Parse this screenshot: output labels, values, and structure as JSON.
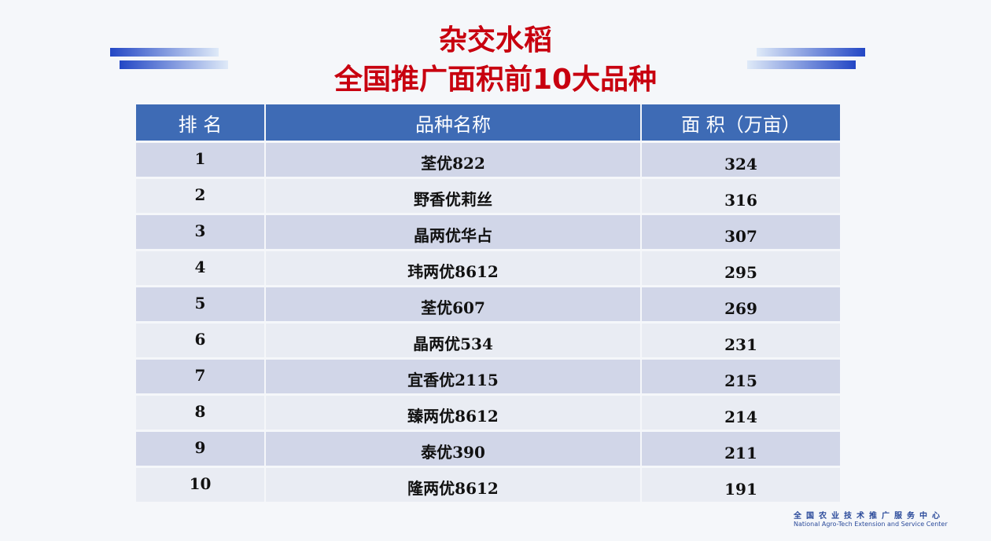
{
  "title": {
    "line1": "杂交水稻",
    "line2": "全国推广面积前10大品种"
  },
  "table": {
    "headers": [
      "排 名",
      "品种名称",
      "面 积（万亩）"
    ],
    "rows": [
      {
        "rank": "1",
        "name": "荃优822",
        "area": "324"
      },
      {
        "rank": "2",
        "name": "野香优莉丝",
        "area": "316"
      },
      {
        "rank": "3",
        "name": "晶两优华占",
        "area": "307"
      },
      {
        "rank": "4",
        "name": "玮两优8612",
        "area": "295"
      },
      {
        "rank": "5",
        "name": "荃优607",
        "area": "269"
      },
      {
        "rank": "6",
        "name": "晶两优534",
        "area": "231"
      },
      {
        "rank": "7",
        "name": "宜香优2115",
        "area": "215"
      },
      {
        "rank": "8",
        "name": "臻两优8612",
        "area": "214"
      },
      {
        "rank": "9",
        "name": "泰优390",
        "area": "211"
      },
      {
        "rank": "10",
        "name": "隆两优8612",
        "area": "191"
      }
    ]
  },
  "footer": {
    "cn": "全国农业技术推广服务中心",
    "en": "National Agro-Tech Extension and Service Center"
  },
  "colors": {
    "title": "#c8000f",
    "header": "#3e6bb5",
    "row_odd": "#d1d6e8",
    "row_even": "#e9ecf3"
  }
}
